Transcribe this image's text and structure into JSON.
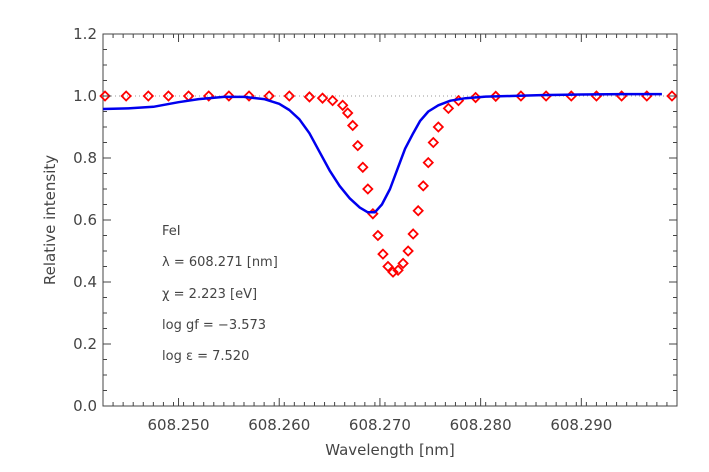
{
  "chart_data": {
    "type": "line",
    "xlabel": "Wavelength [nm]",
    "ylabel": "Relative intensity",
    "xlim": [
      608.2425,
      608.2995
    ],
    "ylim": [
      0.0,
      1.2
    ],
    "x_ticks": [
      608.25,
      608.26,
      608.27,
      608.28,
      608.29
    ],
    "x_tick_labels": [
      "608.250",
      "608.260",
      "608.270",
      "608.280",
      "608.290"
    ],
    "y_ticks": [
      0.0,
      0.2,
      0.4,
      0.6,
      0.8,
      1.0,
      1.2
    ],
    "y_tick_labels": [
      "0.0",
      "0.2",
      "0.4",
      "0.6",
      "0.8",
      "1.0",
      "1.2"
    ],
    "reference_line": {
      "y": 1.0,
      "style": "dotted",
      "color": "#999999"
    },
    "grid": false,
    "annotations": [
      "FeI",
      "λ = 608.271 [nm]",
      "χ =  2.223 [eV]",
      "log gf = −3.573",
      "log ε =  7.520"
    ],
    "series": [
      {
        "marker": "diamond-open",
        "color": "#ff0000",
        "x": [
          608.2427,
          608.2448,
          608.247,
          608.249,
          608.251,
          608.253,
          608.255,
          608.257,
          608.259,
          608.261,
          608.263,
          608.2643,
          608.2653,
          608.2663,
          608.2668,
          608.2673,
          608.2678,
          608.2683,
          608.2688,
          608.2693,
          608.2698,
          608.2703,
          608.2708,
          608.2713,
          608.2718,
          608.2723,
          608.2728,
          608.2733,
          608.2738,
          608.2743,
          608.2748,
          608.2753,
          608.2758,
          608.2768,
          608.2778,
          608.2795,
          608.2815,
          608.284,
          608.2865,
          608.289,
          608.2915,
          608.294,
          608.2965,
          608.299
        ],
        "y": [
          1.0,
          1.0,
          1.0,
          1.0,
          1.0,
          1.0,
          1.0,
          1.0,
          1.0,
          1.0,
          0.997,
          0.993,
          0.985,
          0.97,
          0.945,
          0.905,
          0.84,
          0.77,
          0.7,
          0.62,
          0.55,
          0.49,
          0.45,
          0.432,
          0.438,
          0.46,
          0.5,
          0.555,
          0.63,
          0.71,
          0.785,
          0.85,
          0.9,
          0.96,
          0.985,
          0.995,
          0.999,
          1.0,
          1.0,
          1.0,
          1.0,
          1.0,
          1.0,
          1.0
        ]
      },
      {
        "line": "solid",
        "color": "#0000ee",
        "x": [
          608.2425,
          608.245,
          608.2475,
          608.25,
          608.252,
          608.2545,
          608.2565,
          608.2585,
          608.26,
          608.261,
          608.262,
          608.263,
          608.264,
          608.265,
          608.266,
          608.267,
          608.268,
          608.2688,
          608.2695,
          608.2702,
          608.271,
          608.2718,
          608.2725,
          608.2733,
          608.274,
          608.2748,
          608.2758,
          608.277,
          608.2785,
          608.2805,
          608.283,
          608.286,
          608.29,
          608.294,
          608.298
        ],
        "y": [
          0.958,
          0.96,
          0.965,
          0.98,
          0.99,
          0.997,
          0.997,
          0.99,
          0.975,
          0.955,
          0.925,
          0.88,
          0.82,
          0.76,
          0.71,
          0.67,
          0.64,
          0.625,
          0.625,
          0.65,
          0.7,
          0.77,
          0.83,
          0.88,
          0.92,
          0.95,
          0.97,
          0.985,
          0.993,
          0.998,
          1.0,
          1.003,
          1.005,
          1.006,
          1.006
        ]
      }
    ]
  }
}
